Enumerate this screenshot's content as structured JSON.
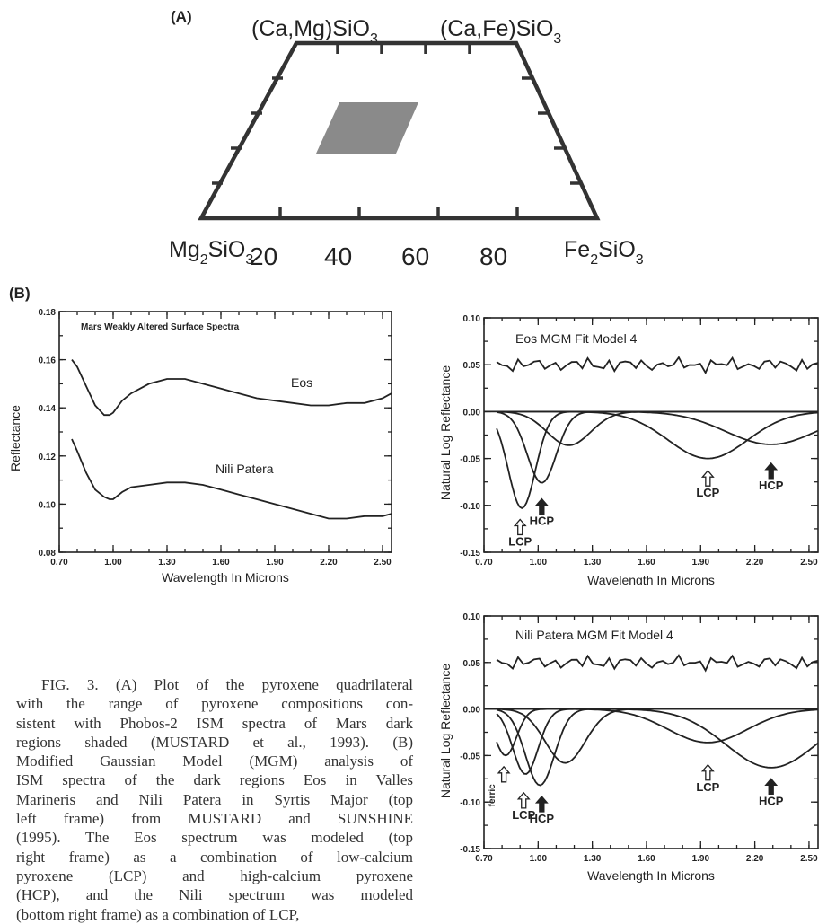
{
  "panelA": {
    "label": "(A)",
    "top_left": "(Ca,Mg)SiO",
    "top_right": "(Ca,Fe)SiO",
    "sub3": "3",
    "sub2": "2",
    "bottom_left_pre": "Mg",
    "bottom_left_mid": "SiO",
    "bottom_right_pre": "Fe",
    "bottom_right_mid": "SiO",
    "ticks": [
      "20",
      "40",
      "60",
      "80"
    ]
  },
  "panelB": {
    "label": "(B)"
  },
  "caption": {
    "lines": [
      "FIG. 3. (A) Plot of the pyroxene quadrilateral",
      "with the range of pyroxene compositions con-",
      "sistent with Phobos-2 ISM spectra of Mars dark",
      "regions shaded (MUSTARD et al., 1993). (B)",
      "Modified Gaussian Model (MGM) analysis of",
      "ISM spectra of the dark regions Eos in Valles",
      "Marineris and Nili Patera in Syrtis Major (top",
      "left frame) from MUSTARD and SUNSHINE",
      "(1995). The Eos spectrum was modeled (top",
      "right frame) as a combination of low-calcium",
      "pyroxene (LCP) and high-calcium pyroxene",
      "(HCP), and the Nili spectrum was modeled",
      "(bottom right frame) as a combination of LCP,"
    ]
  },
  "chart_data": [
    {
      "type": "line",
      "title": "Mars Weakly Altered Surface Spectra",
      "xlabel": "Wavelength In Microns",
      "ylabel": "Reflectance",
      "xlim": [
        0.7,
        2.55
      ],
      "ylim": [
        0.08,
        0.18
      ],
      "xticks": [
        "0.70",
        "1.00",
        "1.30",
        "1.60",
        "1.90",
        "2.20",
        "2.50"
      ],
      "yticks": [
        "0.08",
        "0.10",
        "0.12",
        "0.14",
        "0.16",
        "0.18"
      ],
      "annotations": [
        "Eos",
        "Nili Patera"
      ],
      "series": [
        {
          "name": "Eos",
          "x": [
            0.77,
            0.8,
            0.85,
            0.9,
            0.95,
            0.98,
            1.0,
            1.05,
            1.1,
            1.2,
            1.3,
            1.4,
            1.5,
            1.6,
            1.7,
            1.8,
            1.9,
            2.0,
            2.1,
            2.2,
            2.3,
            2.4,
            2.5,
            2.55
          ],
          "y": [
            0.16,
            0.157,
            0.149,
            0.141,
            0.137,
            0.137,
            0.138,
            0.143,
            0.146,
            0.15,
            0.152,
            0.152,
            0.15,
            0.148,
            0.146,
            0.144,
            0.143,
            0.142,
            0.141,
            0.141,
            0.142,
            0.142,
            0.144,
            0.146
          ]
        },
        {
          "name": "Nili Patera",
          "x": [
            0.77,
            0.8,
            0.85,
            0.9,
            0.95,
            0.98,
            1.0,
            1.05,
            1.1,
            1.2,
            1.3,
            1.4,
            1.5,
            1.6,
            1.7,
            1.8,
            1.9,
            2.0,
            2.1,
            2.2,
            2.3,
            2.4,
            2.5,
            2.55
          ],
          "y": [
            0.127,
            0.122,
            0.113,
            0.106,
            0.103,
            0.102,
            0.102,
            0.105,
            0.107,
            0.108,
            0.109,
            0.109,
            0.108,
            0.106,
            0.104,
            0.102,
            0.1,
            0.098,
            0.096,
            0.094,
            0.094,
            0.095,
            0.095,
            0.096
          ]
        }
      ]
    },
    {
      "type": "line",
      "title": "Eos MGM Fit Model 4",
      "xlabel": "Wavelength In Microns",
      "ylabel": "Natural Log Reflectance",
      "xlim": [
        0.7,
        2.55
      ],
      "ylim": [
        -0.15,
        0.1
      ],
      "xticks": [
        "0.70",
        "1.00",
        "1.30",
        "1.60",
        "1.90",
        "2.20",
        "2.50"
      ],
      "yticks": [
        "0.10",
        "0.05",
        "0.00",
        "-0.05",
        "-0.10",
        "-0.15"
      ],
      "residual_offset": 0.05,
      "bands": [
        {
          "center": 0.91,
          "depth": -0.103,
          "width": 0.075
        },
        {
          "center": 1.02,
          "depth": -0.076,
          "width": 0.08
        },
        {
          "center": 1.17,
          "depth": -0.036,
          "width": 0.12
        },
        {
          "center": 1.94,
          "depth": -0.05,
          "width": 0.22
        },
        {
          "center": 2.29,
          "depth": -0.035,
          "width": 0.25
        }
      ],
      "arrows": [
        {
          "label": "LCP",
          "x": 0.9,
          "y": -0.115,
          "filled": false
        },
        {
          "label": "HCP",
          "x": 1.02,
          "y": -0.093,
          "filled": true
        },
        {
          "label": "LCP",
          "x": 1.94,
          "y": -0.063,
          "filled": false
        },
        {
          "label": "HCP",
          "x": 2.29,
          "y": -0.055,
          "filled": true
        }
      ]
    },
    {
      "type": "line",
      "title": "Nili Patera MGM Fit Model 4",
      "xlabel": "Wavelength In Microns",
      "ylabel": "Natural Log Reflectance",
      "xlim": [
        0.7,
        2.55
      ],
      "ylim": [
        -0.15,
        0.1
      ],
      "xticks": [
        "0.70",
        "1.00",
        "1.30",
        "1.60",
        "1.90",
        "2.20",
        "2.50"
      ],
      "yticks": [
        "0.10",
        "0.05",
        "0.00",
        "-0.05",
        "-0.10",
        "-0.15"
      ],
      "residual_offset": 0.05,
      "bands": [
        {
          "center": 0.82,
          "depth": -0.05,
          "width": 0.06
        },
        {
          "center": 0.93,
          "depth": -0.07,
          "width": 0.07
        },
        {
          "center": 1.01,
          "depth": -0.082,
          "width": 0.08
        },
        {
          "center": 1.15,
          "depth": -0.058,
          "width": 0.11
        },
        {
          "center": 1.94,
          "depth": -0.036,
          "width": 0.22
        },
        {
          "center": 2.29,
          "depth": -0.063,
          "width": 0.25
        }
      ],
      "arrows": [
        {
          "label": "ferric",
          "x": 0.81,
          "y": -0.062,
          "filled": false
        },
        {
          "label": "LCP",
          "x": 0.92,
          "y": -0.09,
          "filled": false
        },
        {
          "label": "HCP",
          "x": 1.02,
          "y": -0.094,
          "filled": true
        },
        {
          "label": "LCP",
          "x": 1.94,
          "y": -0.06,
          "filled": false
        },
        {
          "label": "HCP",
          "x": 2.29,
          "y": -0.075,
          "filled": true
        }
      ]
    }
  ]
}
